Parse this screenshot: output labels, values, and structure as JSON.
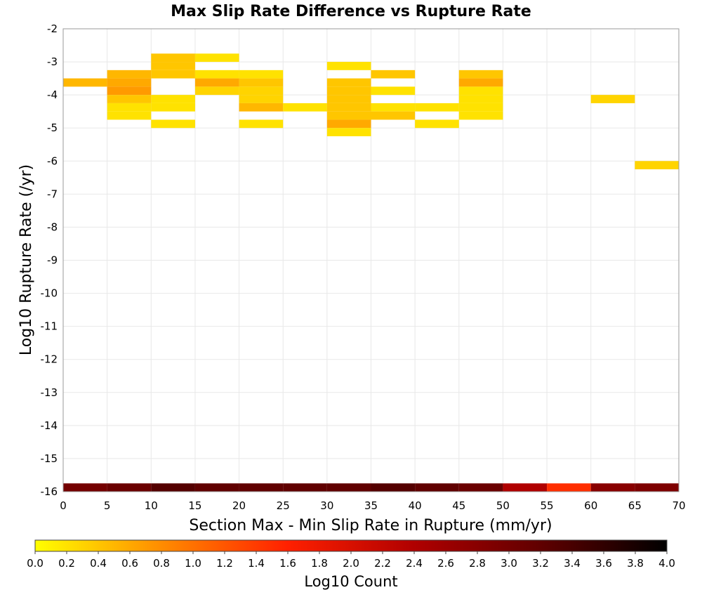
{
  "chart_data": {
    "type": "heatmap",
    "title": "Max Slip Rate Difference vs Rupture Rate",
    "xlabel": "Section Max - Min Slip Rate in Rupture (mm/yr)",
    "ylabel": "Log10 Rupture Rate (/yr)",
    "xlim": [
      0,
      70
    ],
    "ylim": [
      -16,
      -2
    ],
    "x_ticks": [
      0,
      5,
      10,
      15,
      20,
      25,
      30,
      35,
      40,
      45,
      50,
      55,
      60,
      65,
      70
    ],
    "y_ticks": [
      -2,
      -3,
      -4,
      -5,
      -6,
      -7,
      -8,
      -9,
      -10,
      -11,
      -12,
      -13,
      -14,
      -15,
      -16
    ],
    "x_bin_width": 5,
    "y_bin_height": 0.25,
    "grid": true,
    "colorbar": {
      "label": "Log10 Count",
      "range": [
        0.0,
        4.0
      ],
      "ticks": [
        "0.0",
        "0.2",
        "0.4",
        "0.6",
        "0.8",
        "1.0",
        "1.2",
        "1.4",
        "1.6",
        "1.8",
        "2.0",
        "2.2",
        "2.4",
        "2.6",
        "2.8",
        "3.0",
        "3.2",
        "3.4",
        "3.6",
        "3.8",
        "4.0"
      ],
      "colors": [
        "#ffff00",
        "#ff8c00",
        "#ff2000",
        "#b00000",
        "#600000",
        "#000000"
      ]
    },
    "cells": [
      {
        "x": 0,
        "y": -3.625,
        "value": 0.5
      },
      {
        "x": 0,
        "y": -15.875,
        "value": 3.0
      },
      {
        "x": 5,
        "y": -3.375,
        "value": 0.5
      },
      {
        "x": 5,
        "y": -3.625,
        "value": 0.6
      },
      {
        "x": 5,
        "y": -3.875,
        "value": 0.7
      },
      {
        "x": 5,
        "y": -4.125,
        "value": 0.4
      },
      {
        "x": 5,
        "y": -4.375,
        "value": 0.2
      },
      {
        "x": 5,
        "y": -4.625,
        "value": 0.2
      },
      {
        "x": 5,
        "y": -15.875,
        "value": 3.1
      },
      {
        "x": 10,
        "y": -2.875,
        "value": 0.4
      },
      {
        "x": 10,
        "y": -3.125,
        "value": 0.4
      },
      {
        "x": 10,
        "y": -3.375,
        "value": 0.4
      },
      {
        "x": 10,
        "y": -4.125,
        "value": 0.2
      },
      {
        "x": 10,
        "y": -4.375,
        "value": 0.2
      },
      {
        "x": 10,
        "y": -4.875,
        "value": 0.2
      },
      {
        "x": 10,
        "y": -15.875,
        "value": 3.3
      },
      {
        "x": 15,
        "y": -2.875,
        "value": 0.2
      },
      {
        "x": 15,
        "y": -3.375,
        "value": 0.2
      },
      {
        "x": 15,
        "y": -3.625,
        "value": 0.6
      },
      {
        "x": 15,
        "y": -3.875,
        "value": 0.3
      },
      {
        "x": 15,
        "y": -15.875,
        "value": 3.2
      },
      {
        "x": 20,
        "y": -3.375,
        "value": 0.2
      },
      {
        "x": 20,
        "y": -3.625,
        "value": 0.4
      },
      {
        "x": 20,
        "y": -3.875,
        "value": 0.3
      },
      {
        "x": 20,
        "y": -4.125,
        "value": 0.3
      },
      {
        "x": 20,
        "y": -4.375,
        "value": 0.5
      },
      {
        "x": 20,
        "y": -4.875,
        "value": 0.2
      },
      {
        "x": 20,
        "y": -15.875,
        "value": 3.2
      },
      {
        "x": 25,
        "y": -4.375,
        "value": 0.2
      },
      {
        "x": 25,
        "y": -15.875,
        "value": 3.2
      },
      {
        "x": 30,
        "y": -3.125,
        "value": 0.2
      },
      {
        "x": 30,
        "y": -3.625,
        "value": 0.4
      },
      {
        "x": 30,
        "y": -3.875,
        "value": 0.4
      },
      {
        "x": 30,
        "y": -4.125,
        "value": 0.4
      },
      {
        "x": 30,
        "y": -4.375,
        "value": 0.4
      },
      {
        "x": 30,
        "y": -4.625,
        "value": 0.4
      },
      {
        "x": 30,
        "y": -4.875,
        "value": 0.6
      },
      {
        "x": 30,
        "y": -5.125,
        "value": 0.2
      },
      {
        "x": 30,
        "y": -15.875,
        "value": 3.2
      },
      {
        "x": 35,
        "y": -3.375,
        "value": 0.4
      },
      {
        "x": 35,
        "y": -3.875,
        "value": 0.2
      },
      {
        "x": 35,
        "y": -4.375,
        "value": 0.2
      },
      {
        "x": 35,
        "y": -4.625,
        "value": 0.4
      },
      {
        "x": 35,
        "y": -15.875,
        "value": 3.3
      },
      {
        "x": 40,
        "y": -4.375,
        "value": 0.2
      },
      {
        "x": 40,
        "y": -4.875,
        "value": 0.2
      },
      {
        "x": 40,
        "y": -15.875,
        "value": 3.2
      },
      {
        "x": 45,
        "y": -3.375,
        "value": 0.4
      },
      {
        "x": 45,
        "y": -3.625,
        "value": 0.6
      },
      {
        "x": 45,
        "y": -3.875,
        "value": 0.2
      },
      {
        "x": 45,
        "y": -4.125,
        "value": 0.2
      },
      {
        "x": 45,
        "y": -4.375,
        "value": 0.2
      },
      {
        "x": 45,
        "y": -4.625,
        "value": 0.2
      },
      {
        "x": 45,
        "y": -15.875,
        "value": 3.1
      },
      {
        "x": 50,
        "y": -15.875,
        "value": 2.4
      },
      {
        "x": 55,
        "y": -15.875,
        "value": 1.5
      },
      {
        "x": 60,
        "y": -4.125,
        "value": 0.3
      },
      {
        "x": 60,
        "y": -15.875,
        "value": 2.8
      },
      {
        "x": 65,
        "y": -6.125,
        "value": 0.3
      },
      {
        "x": 65,
        "y": -15.875,
        "value": 2.9
      }
    ]
  }
}
